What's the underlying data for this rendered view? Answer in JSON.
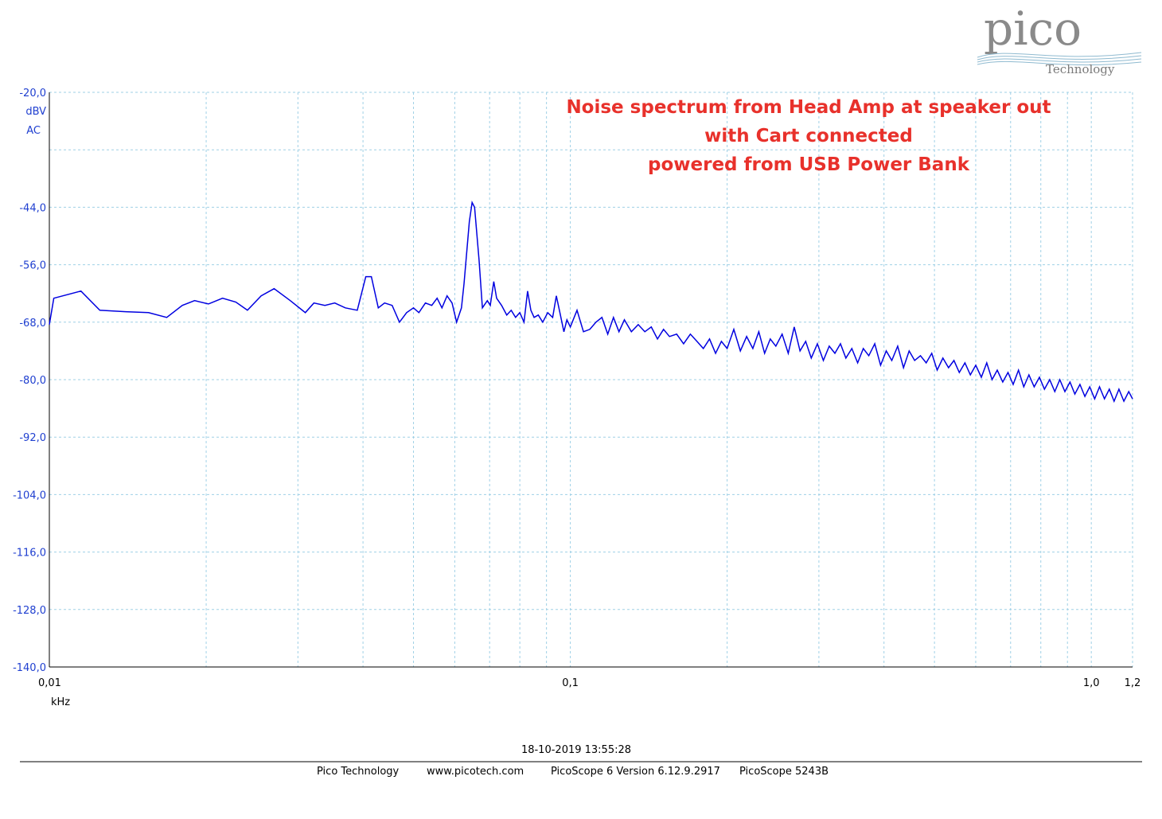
{
  "logo": {
    "word": "pico",
    "sub": "Technology"
  },
  "annotation": {
    "lines": [
      "Noise spectrum from Head Amp at speaker out",
      "with Cart connected",
      "powered from USB Power Bank"
    ]
  },
  "footer": {
    "timestamp": "18-10-2019 13:55:28",
    "items": [
      "Pico Technology",
      "www.picotech.com",
      "PicoScope 6 Version 6.12.9.2917",
      "PicoScope 5243B"
    ]
  },
  "colors": {
    "trace": "#0000e0",
    "grid": "#9fd0e6",
    "axis": "#000000",
    "annotation": "#e8312b",
    "y_ticks": "#1f3fd0"
  },
  "chart_data": {
    "type": "line",
    "x_scale": "log",
    "xlim": [
      0.01,
      1.2
    ],
    "ylim": [
      -140,
      -20
    ],
    "y_unit_lines": [
      "dBV",
      "AC"
    ],
    "x_unit": "kHz",
    "y_ticks": [
      -20,
      -44,
      -56,
      -68,
      -80,
      -92,
      -104,
      -116,
      -128,
      -140
    ],
    "y_tick_labels": [
      "-20,0",
      "-44,0",
      "-56,0",
      "-68,0",
      "-80,0",
      "-92,0",
      "-104,0",
      "-116,0",
      "-128,0",
      "-140,0"
    ],
    "x_ticks": [
      0.01,
      0.1,
      1.0,
      1.2
    ],
    "x_tick_labels": [
      "0,01",
      "0,1",
      "1,0",
      "1,2"
    ],
    "grid": true,
    "series": [
      {
        "points": [
          [
            0.01,
            -68.5
          ],
          [
            0.0102,
            -63.0
          ],
          [
            0.0115,
            -61.5
          ],
          [
            0.0125,
            -65.5
          ],
          [
            0.014,
            -65.8
          ],
          [
            0.0155,
            -66.0
          ],
          [
            0.0168,
            -67.0
          ],
          [
            0.018,
            -64.5
          ],
          [
            0.019,
            -63.5
          ],
          [
            0.0202,
            -64.2
          ],
          [
            0.0215,
            -63.0
          ],
          [
            0.0228,
            -63.8
          ],
          [
            0.024,
            -65.5
          ],
          [
            0.0255,
            -62.5
          ],
          [
            0.027,
            -61.0
          ],
          [
            0.029,
            -63.5
          ],
          [
            0.031,
            -66.0
          ],
          [
            0.0322,
            -64.0
          ],
          [
            0.0338,
            -64.5
          ],
          [
            0.0353,
            -64.0
          ],
          [
            0.037,
            -65.0
          ],
          [
            0.039,
            -65.5
          ],
          [
            0.0405,
            -58.5
          ],
          [
            0.0415,
            -58.5
          ],
          [
            0.0428,
            -65.0
          ],
          [
            0.044,
            -64.0
          ],
          [
            0.0455,
            -64.5
          ],
          [
            0.047,
            -68.0
          ],
          [
            0.0485,
            -66.0
          ],
          [
            0.05,
            -65.0
          ],
          [
            0.0512,
            -66.0
          ],
          [
            0.0527,
            -64.0
          ],
          [
            0.0542,
            -64.5
          ],
          [
            0.0555,
            -63.0
          ],
          [
            0.0567,
            -65.0
          ],
          [
            0.058,
            -62.5
          ],
          [
            0.0593,
            -64.0
          ],
          [
            0.0605,
            -68.0
          ],
          [
            0.0618,
            -65.0
          ],
          [
            0.0625,
            -60.0
          ],
          [
            0.064,
            -47.0
          ],
          [
            0.0648,
            -43.0
          ],
          [
            0.0655,
            -44.0
          ],
          [
            0.0668,
            -55.0
          ],
          [
            0.0678,
            -65.0
          ],
          [
            0.0693,
            -63.5
          ],
          [
            0.0702,
            -64.5
          ],
          [
            0.0713,
            -59.5
          ],
          [
            0.0722,
            -63.0
          ],
          [
            0.0738,
            -64.5
          ],
          [
            0.0755,
            -66.5
          ],
          [
            0.077,
            -65.5
          ],
          [
            0.0785,
            -67.0
          ],
          [
            0.08,
            -66.0
          ],
          [
            0.0815,
            -68.0
          ],
          [
            0.0828,
            -61.5
          ],
          [
            0.084,
            -65.5
          ],
          [
            0.0852,
            -67.0
          ],
          [
            0.0868,
            -66.5
          ],
          [
            0.0885,
            -68.0
          ],
          [
            0.0905,
            -66.0
          ],
          [
            0.0925,
            -67.0
          ],
          [
            0.094,
            -62.5
          ],
          [
            0.0955,
            -66.0
          ],
          [
            0.0972,
            -70.0
          ],
          [
            0.0985,
            -67.5
          ],
          [
            0.1,
            -69.0
          ],
          [
            0.103,
            -65.5
          ],
          [
            0.106,
            -70.0
          ],
          [
            0.109,
            -69.5
          ],
          [
            0.112,
            -68.0
          ],
          [
            0.115,
            -67.0
          ],
          [
            0.118,
            -70.5
          ],
          [
            0.121,
            -67.0
          ],
          [
            0.124,
            -70.0
          ],
          [
            0.127,
            -67.5
          ],
          [
            0.131,
            -70.0
          ],
          [
            0.135,
            -68.5
          ],
          [
            0.139,
            -70.0
          ],
          [
            0.143,
            -69.0
          ],
          [
            0.147,
            -71.5
          ],
          [
            0.151,
            -69.5
          ],
          [
            0.155,
            -71.0
          ],
          [
            0.16,
            -70.5
          ],
          [
            0.165,
            -72.5
          ],
          [
            0.17,
            -70.5
          ],
          [
            0.175,
            -72.0
          ],
          [
            0.18,
            -73.5
          ],
          [
            0.185,
            -71.5
          ],
          [
            0.19,
            -74.5
          ],
          [
            0.195,
            -72.0
          ],
          [
            0.2,
            -73.5
          ],
          [
            0.206,
            -69.5
          ],
          [
            0.212,
            -74.0
          ],
          [
            0.218,
            -71.0
          ],
          [
            0.224,
            -73.5
          ],
          [
            0.23,
            -70.0
          ],
          [
            0.236,
            -74.5
          ],
          [
            0.242,
            -71.5
          ],
          [
            0.248,
            -73.0
          ],
          [
            0.255,
            -70.5
          ],
          [
            0.262,
            -74.5
          ],
          [
            0.269,
            -69.0
          ],
          [
            0.276,
            -74.0
          ],
          [
            0.283,
            -72.0
          ],
          [
            0.29,
            -75.5
          ],
          [
            0.298,
            -72.5
          ],
          [
            0.306,
            -76.0
          ],
          [
            0.314,
            -73.0
          ],
          [
            0.322,
            -74.5
          ],
          [
            0.33,
            -72.5
          ],
          [
            0.338,
            -75.5
          ],
          [
            0.347,
            -73.5
          ],
          [
            0.356,
            -76.5
          ],
          [
            0.365,
            -73.5
          ],
          [
            0.374,
            -75.0
          ],
          [
            0.384,
            -72.5
          ],
          [
            0.394,
            -77.0
          ],
          [
            0.404,
            -74.0
          ],
          [
            0.414,
            -76.0
          ],
          [
            0.425,
            -73.0
          ],
          [
            0.436,
            -77.5
          ],
          [
            0.447,
            -74.0
          ],
          [
            0.458,
            -76.0
          ],
          [
            0.47,
            -75.0
          ],
          [
            0.482,
            -76.5
          ],
          [
            0.494,
            -74.5
          ],
          [
            0.506,
            -78.0
          ],
          [
            0.519,
            -75.5
          ],
          [
            0.532,
            -77.5
          ],
          [
            0.545,
            -76.0
          ],
          [
            0.558,
            -78.5
          ],
          [
            0.572,
            -76.5
          ],
          [
            0.586,
            -79.0
          ],
          [
            0.6,
            -77.0
          ],
          [
            0.615,
            -79.5
          ],
          [
            0.63,
            -76.5
          ],
          [
            0.645,
            -80.0
          ],
          [
            0.66,
            -78.0
          ],
          [
            0.676,
            -80.5
          ],
          [
            0.692,
            -78.5
          ],
          [
            0.708,
            -81.0
          ],
          [
            0.725,
            -78.0
          ],
          [
            0.742,
            -81.5
          ],
          [
            0.759,
            -79.0
          ],
          [
            0.777,
            -81.5
          ],
          [
            0.795,
            -79.5
          ],
          [
            0.813,
            -82.0
          ],
          [
            0.832,
            -80.0
          ],
          [
            0.851,
            -82.5
          ],
          [
            0.87,
            -80.0
          ],
          [
            0.89,
            -82.5
          ],
          [
            0.91,
            -80.5
          ],
          [
            0.93,
            -83.0
          ],
          [
            0.951,
            -81.0
          ],
          [
            0.972,
            -83.5
          ],
          [
            0.993,
            -81.5
          ],
          [
            1.015,
            -84.0
          ],
          [
            1.037,
            -81.5
          ],
          [
            1.06,
            -84.0
          ],
          [
            1.083,
            -82.0
          ],
          [
            1.106,
            -84.5
          ],
          [
            1.13,
            -82.0
          ],
          [
            1.155,
            -84.5
          ],
          [
            1.18,
            -82.5
          ],
          [
            1.2,
            -84.0
          ]
        ]
      }
    ]
  }
}
